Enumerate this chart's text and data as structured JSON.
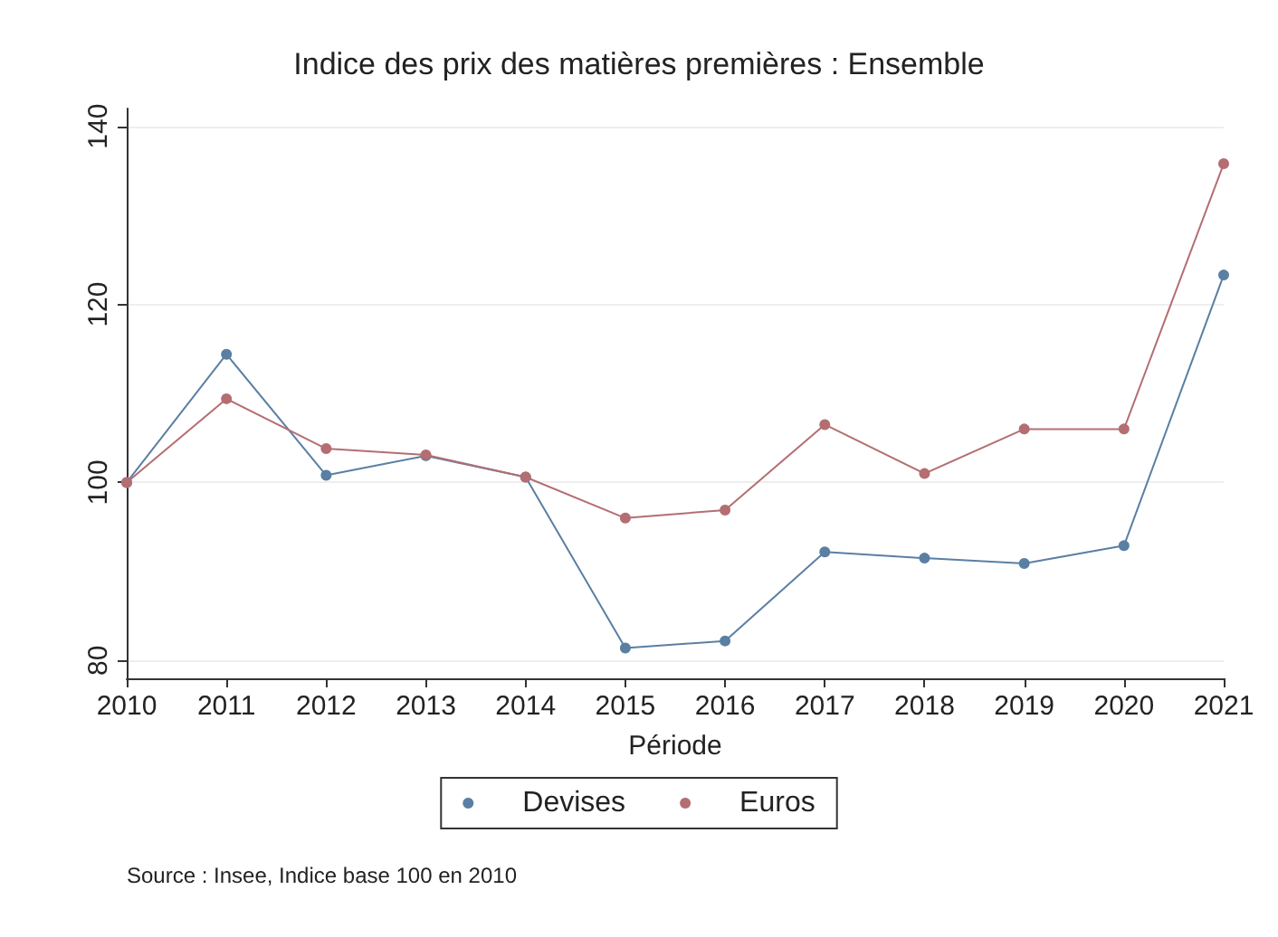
{
  "chart_data": {
    "type": "line",
    "title": "Indice des prix des matières premières : Ensemble",
    "xlabel": "Période",
    "categories": [
      "2010",
      "2011",
      "2012",
      "2013",
      "2014",
      "2015",
      "2016",
      "2017",
      "2018",
      "2019",
      "2020",
      "2021"
    ],
    "series": [
      {
        "name": "Devises",
        "color": "#5a7fa3",
        "values": [
          100,
          114.4,
          100.8,
          103,
          100.6,
          81.4,
          82.2,
          92.2,
          91.5,
          90.9,
          92.9,
          123.3
        ]
      },
      {
        "name": "Euros",
        "color": "#b46e72",
        "values": [
          100,
          109.4,
          103.8,
          103.1,
          100.6,
          96,
          96.9,
          106.5,
          101,
          106,
          106,
          135.8
        ]
      }
    ],
    "ylim": [
      78,
      142
    ],
    "yticks": [
      80,
      100,
      120,
      140
    ],
    "grid": "y",
    "legend": "bottom",
    "marker": "circle",
    "line_style": "solid",
    "annotations": [
      "Source : Insee, Indice base 100 en 2010"
    ]
  }
}
